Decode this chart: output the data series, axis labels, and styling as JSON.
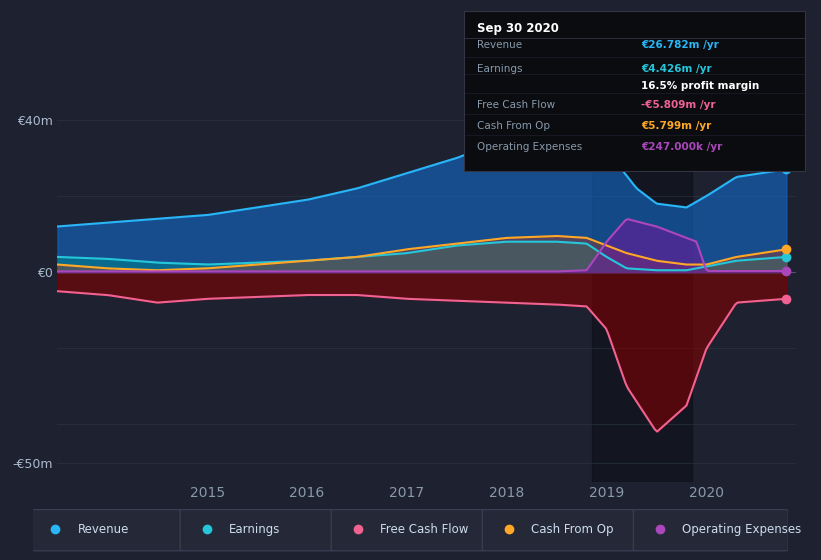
{
  "bg_color": "#1e2130",
  "colors": {
    "revenue": "#29b6f6",
    "earnings": "#26c6da",
    "free_cash_flow": "#f06292",
    "cash_from_op": "#ffa726",
    "operating_expenses": "#ab47bc"
  },
  "legend": [
    {
      "label": "Revenue",
      "color": "#29b6f6"
    },
    {
      "label": "Earnings",
      "color": "#26c6da"
    },
    {
      "label": "Free Cash Flow",
      "color": "#f06292"
    },
    {
      "label": "Cash From Op",
      "color": "#ffa726"
    },
    {
      "label": "Operating Expenses",
      "color": "#ab47bc"
    }
  ],
  "tooltip": {
    "date": "Sep 30 2020",
    "revenue": "€26.782m /yr",
    "earnings": "€4.426m /yr",
    "profit_margin": "16.5% profit margin",
    "free_cash_flow": "-€5.809m /yr",
    "cash_from_op": "€5.799m /yr",
    "operating_expenses": "€247.000k /yr"
  }
}
